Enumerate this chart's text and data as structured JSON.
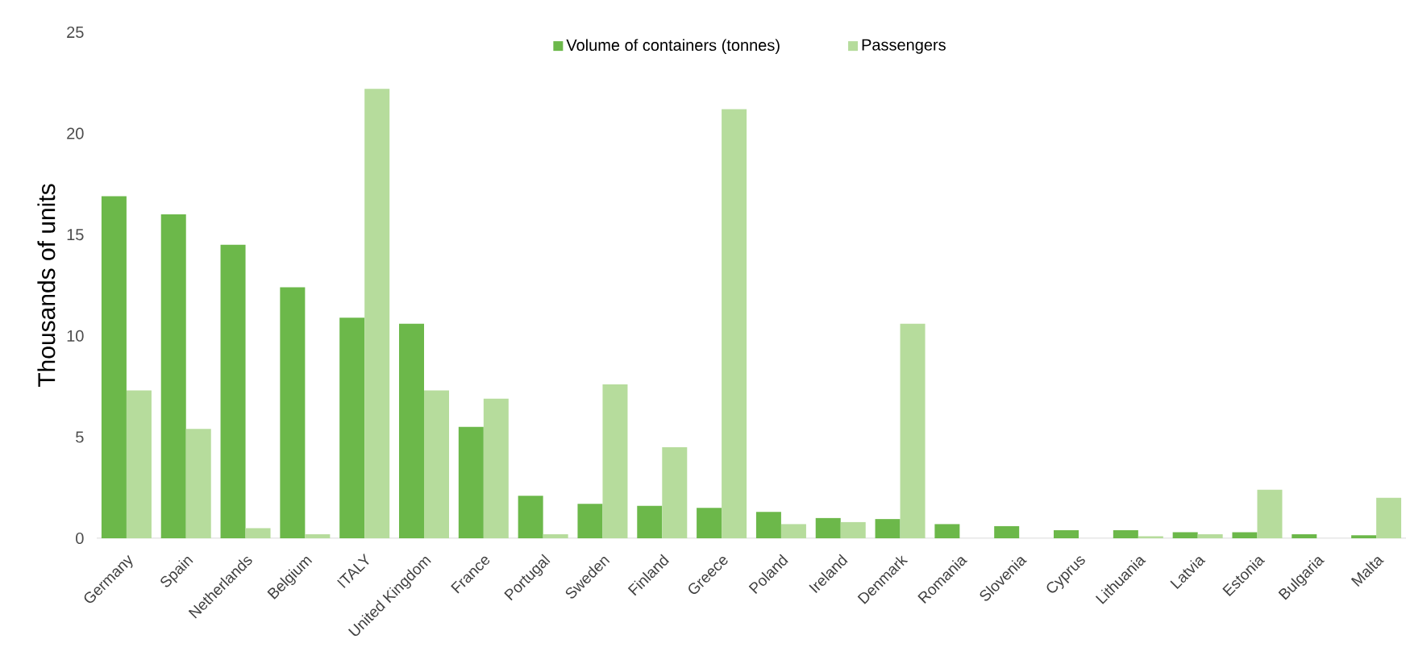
{
  "chart_data": {
    "type": "bar",
    "ylabel": "Thousands of units",
    "categories": [
      "Germany",
      "Spain",
      "Netherlands",
      "Belgium",
      "ITALY",
      "United Kingdom",
      "France",
      "Portugal",
      "Sweden",
      "Finland",
      "Greece",
      "Poland",
      "Ireland",
      "Denmark",
      "Romania",
      "Slovenia",
      "Cyprus",
      "Lithuania",
      "Latvia",
      "Estonia",
      "Bulgaria",
      "Malta"
    ],
    "series": [
      {
        "name": "Volume of containers (tonnes)",
        "color": "#6cb84a",
        "values": [
          16.9,
          16.0,
          14.5,
          12.4,
          10.9,
          10.6,
          5.5,
          2.1,
          1.7,
          1.6,
          1.5,
          1.3,
          1.0,
          0.95,
          0.7,
          0.6,
          0.4,
          0.4,
          0.3,
          0.3,
          0.2,
          0.15
        ]
      },
      {
        "name": "Passengers",
        "color": "#b6dc9c",
        "values": [
          7.3,
          5.4,
          0.5,
          0.2,
          22.2,
          7.3,
          6.9,
          0.2,
          7.6,
          4.5,
          21.2,
          0.7,
          0.8,
          10.6,
          0,
          0,
          0,
          0.1,
          0.2,
          2.4,
          0,
          2.0
        ]
      }
    ],
    "ylim": [
      0,
      25
    ],
    "yticks": [
      0,
      5,
      10,
      15,
      20,
      25
    ],
    "grid": false,
    "legend": "top"
  }
}
